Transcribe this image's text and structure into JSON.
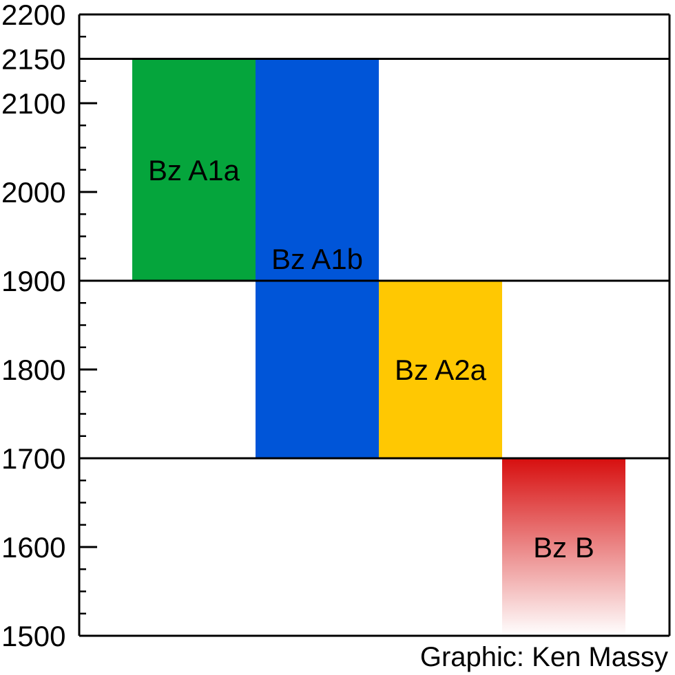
{
  "chart_data": {
    "type": "bar",
    "title": "",
    "xlabel": "",
    "ylabel": "",
    "ylim": [
      1500,
      2200
    ],
    "y_ticks": [
      "1500",
      "1600",
      "1700",
      "1800",
      "1900",
      "2000",
      "2100",
      "2150",
      "2200"
    ],
    "y_tick_values": [
      1500,
      1600,
      1700,
      1800,
      1900,
      2000,
      2100,
      2150,
      2200
    ],
    "minor_tick_step": 25,
    "reference_lines": [
      1700,
      1900,
      2150
    ],
    "bars": [
      {
        "label": "Bz A1a",
        "from": 1900,
        "to": 2150,
        "color": "#05a53c",
        "gradient": false
      },
      {
        "label": "Bz A1b",
        "from": 1700,
        "to": 2150,
        "color": "#0055d8",
        "gradient": false
      },
      {
        "label": "Bz A2a",
        "from": 1700,
        "to": 1900,
        "color": "#ffc802",
        "gradient": false
      },
      {
        "label": "Bz B",
        "from": 1500,
        "to": 1700,
        "color": "#d70f0f",
        "gradient": true
      }
    ]
  },
  "credit": "Graphic: Ken Massy"
}
